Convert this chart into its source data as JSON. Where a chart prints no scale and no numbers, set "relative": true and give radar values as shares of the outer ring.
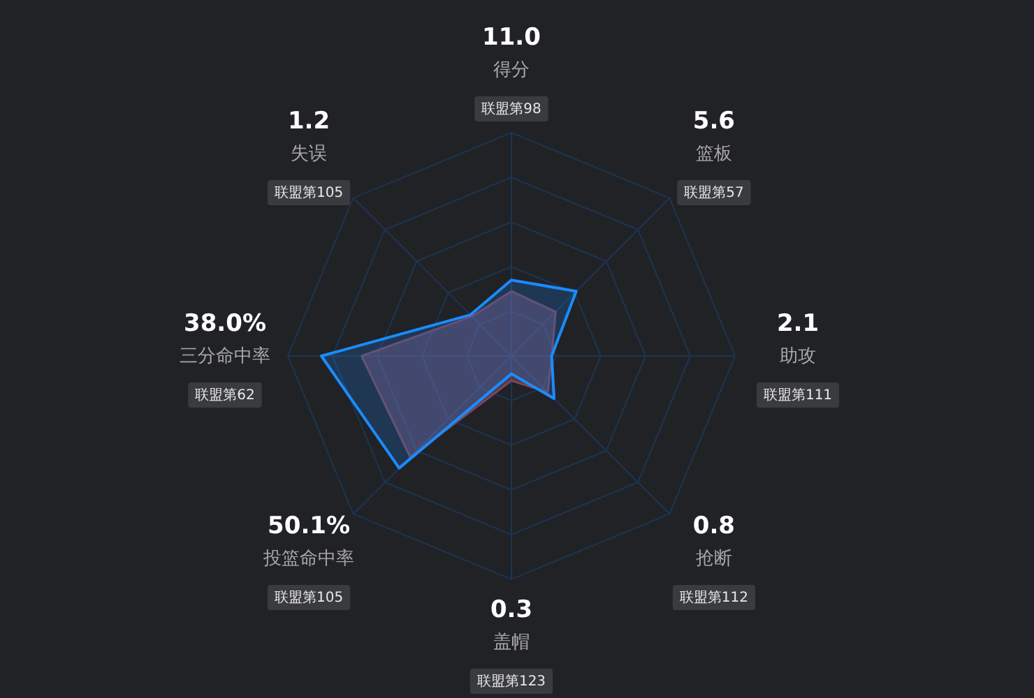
{
  "chart_data": {
    "type": "radar",
    "relative": true,
    "categories": [
      "得分",
      "篮板",
      "助攻",
      "抢断",
      "盖帽",
      "投篮命中率",
      "三分命中率",
      "失误"
    ],
    "series": [
      {
        "color": "#7a4658",
        "values": [
          0.29,
          0.28,
          0.18,
          0.23,
          0.11,
          0.64,
          0.67,
          0.25
        ]
      },
      {
        "color": "#1a8cff",
        "values": [
          0.34,
          0.41,
          0.18,
          0.27,
          0.08,
          0.71,
          0.85,
          0.26
        ]
      }
    ],
    "annotations": [
      "11.0",
      "联盟第98",
      "5.6",
      "联盟第57",
      "2.1",
      "联盟第111",
      "0.8",
      "联盟第112",
      "0.3",
      "联盟第123",
      "50.1%",
      "联盟第105",
      "38.0%",
      "联盟第62",
      "1.2",
      "联盟第105"
    ],
    "grid": true
  }
}
